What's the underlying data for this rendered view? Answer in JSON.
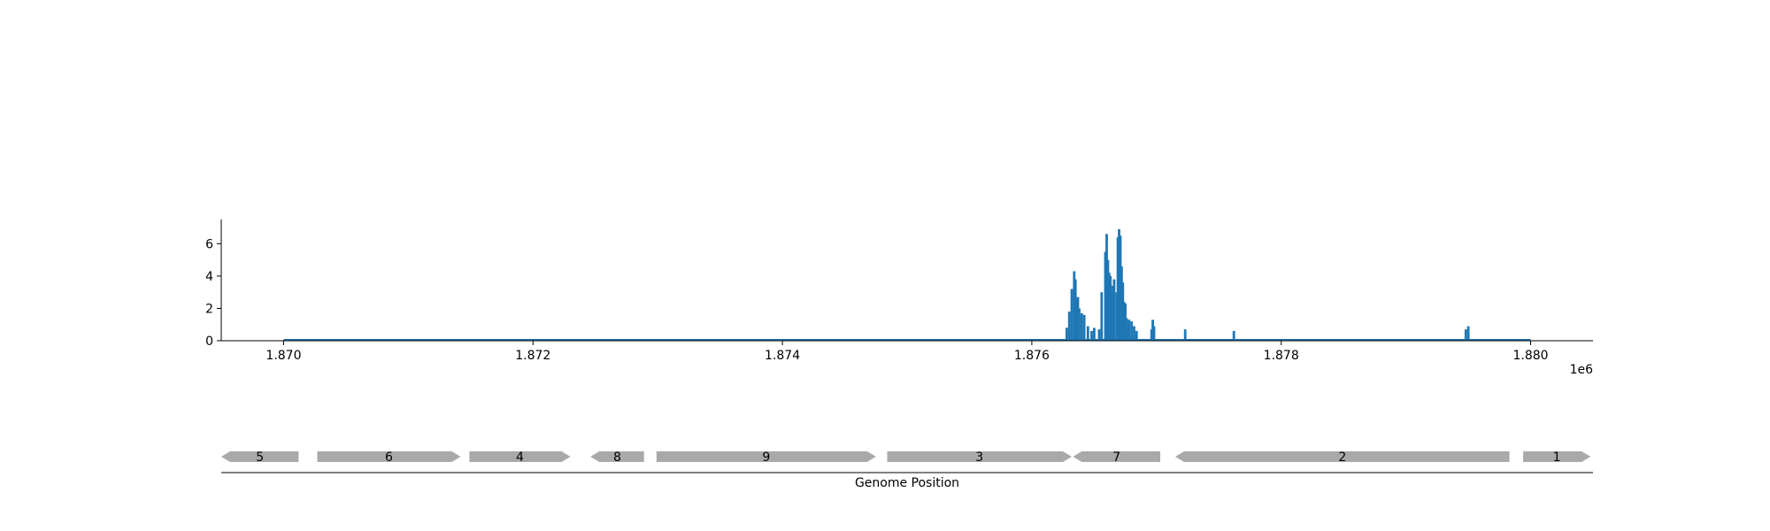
{
  "chart_data": [
    {
      "type": "bar",
      "title": "",
      "xlabel": "",
      "ylabel": "",
      "x_offset_label": "1e6",
      "x_tick_labels": [
        "1.870",
        "1.872",
        "1.874",
        "1.876",
        "1.878",
        "1.880"
      ],
      "x_ticks": [
        1870000,
        1872000,
        1874000,
        1876000,
        1878000,
        1880000
      ],
      "y_ticks": [
        0,
        2,
        4,
        6
      ],
      "y_tick_labels": [
        "0",
        "2",
        "4",
        "6"
      ],
      "xlim": [
        1869500,
        1880500
      ],
      "ylim": [
        0,
        7.5
      ],
      "baseline_range": [
        1870000,
        1880000
      ],
      "grid": false,
      "bar_color": "#1f77b4",
      "x": [
        1876280,
        1876300,
        1876320,
        1876340,
        1876350,
        1876360,
        1876370,
        1876380,
        1876400,
        1876420,
        1876450,
        1876480,
        1876500,
        1876540,
        1876560,
        1876590,
        1876600,
        1876610,
        1876620,
        1876630,
        1876640,
        1876650,
        1876660,
        1876680,
        1876690,
        1876700,
        1876710,
        1876720,
        1876730,
        1876740,
        1876750,
        1876760,
        1876770,
        1876780,
        1876800,
        1876820,
        1876840,
        1876960,
        1876970,
        1876980,
        1877230,
        1877620,
        1879480,
        1879500
      ],
      "values": [
        0.8,
        1.8,
        3.2,
        4.3,
        3.8,
        2.6,
        2.7,
        2.0,
        1.7,
        1.6,
        0.9,
        0.6,
        0.8,
        0.7,
        3.0,
        5.5,
        6.6,
        5.0,
        4.2,
        4.0,
        3.0,
        3.4,
        3.8,
        3.0,
        6.4,
        6.9,
        6.5,
        4.6,
        3.6,
        2.4,
        2.3,
        1.4,
        1.0,
        1.3,
        1.2,
        0.9,
        0.6,
        0.7,
        1.3,
        0.9,
        0.7,
        0.6,
        0.7,
        0.9
      ]
    },
    {
      "type": "gene-map",
      "xlabel": "Genome Position",
      "genes": [
        {
          "label": "5",
          "start": 1869500,
          "end": 1870120,
          "strand": "-"
        },
        {
          "label": "6",
          "start": 1870270,
          "end": 1871420,
          "strand": "+"
        },
        {
          "label": "4",
          "start": 1871490,
          "end": 1872300,
          "strand": "+"
        },
        {
          "label": "8",
          "start": 1872460,
          "end": 1872890,
          "strand": "-"
        },
        {
          "label": "9",
          "start": 1872990,
          "end": 1874750,
          "strand": "+"
        },
        {
          "label": "3",
          "start": 1874840,
          "end": 1876320,
          "strand": "+"
        },
        {
          "label": "7",
          "start": 1876330,
          "end": 1877030,
          "strand": "-"
        },
        {
          "label": "2",
          "start": 1877150,
          "end": 1879830,
          "strand": "-"
        },
        {
          "label": "1",
          "start": 1879940,
          "end": 1880480,
          "strand": "+"
        }
      ],
      "gene_color": "#a9a9a9"
    }
  ]
}
